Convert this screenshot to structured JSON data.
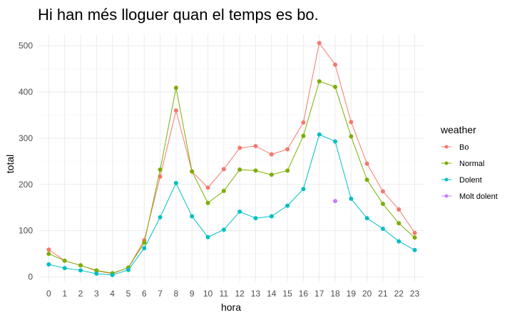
{
  "chart_data": {
    "type": "line",
    "title": "Hi han més lloguer quan el temps es bo.",
    "xlabel": "hora",
    "ylabel": "total",
    "x": [
      0,
      1,
      2,
      3,
      4,
      5,
      6,
      7,
      8,
      9,
      10,
      11,
      12,
      13,
      14,
      15,
      16,
      17,
      18,
      19,
      20,
      21,
      22,
      23
    ],
    "xlim": [
      -0.6,
      23.6
    ],
    "ylim": [
      -10,
      525
    ],
    "x_ticks": [
      "0",
      "1",
      "2",
      "3",
      "4",
      "5",
      "6",
      "7",
      "8",
      "9",
      "10",
      "11",
      "12",
      "13",
      "14",
      "15",
      "16",
      "17",
      "18",
      "19",
      "20",
      "21",
      "22",
      "23"
    ],
    "y_ticks": [
      0,
      100,
      200,
      300,
      400,
      500
    ],
    "grid": true,
    "legend_position": "right",
    "legend_title": "weather",
    "series": [
      {
        "name": "Bo",
        "color": "#F8766D",
        "values": [
          59,
          35,
          25,
          13,
          7,
          20,
          79,
          217,
          360,
          228,
          193,
          233,
          279,
          283,
          265,
          276,
          334,
          506,
          459,
          335,
          245,
          185,
          146,
          95
        ]
      },
      {
        "name": "Normal",
        "color": "#7CAE00",
        "values": [
          50,
          35,
          25,
          14,
          8,
          20,
          74,
          232,
          409,
          228,
          160,
          186,
          232,
          230,
          221,
          230,
          305,
          423,
          411,
          304,
          210,
          158,
          116,
          85
        ]
      },
      {
        "name": "Dolent",
        "color": "#00BFC4",
        "values": [
          27,
          19,
          14,
          7,
          4,
          15,
          62,
          129,
          203,
          131,
          86,
          102,
          141,
          127,
          131,
          154,
          190,
          308,
          293,
          169,
          127,
          104,
          77,
          58
        ]
      },
      {
        "name": "Molt dolent",
        "color": "#C77CFF",
        "x": [
          18
        ],
        "values": [
          164
        ]
      }
    ]
  }
}
